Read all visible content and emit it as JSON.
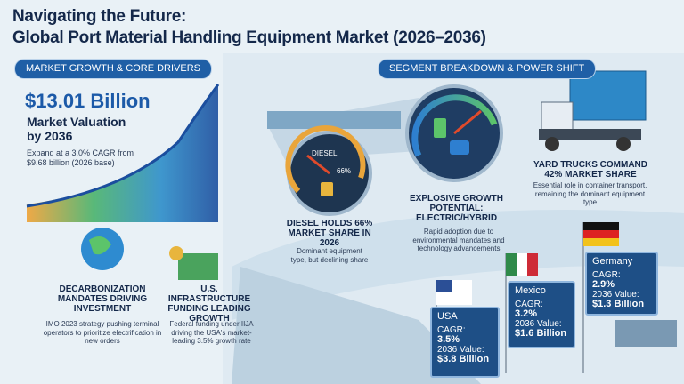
{
  "header": {
    "title_line1": "Navigating the Future:",
    "title_line2": "Global Port Material Handling Equipment Market (2026–2036)"
  },
  "sections": {
    "left": "MARKET GROWTH & CORE DRIVERS",
    "right": "SEGMENT BREAKDOWN & POWER SHIFT"
  },
  "valuation": {
    "amount": "$13.01 Billion",
    "label": "Market Valuation by 2036",
    "note": "Expand at a 3.0% CAGR from $9.68 billion (2026 base)"
  },
  "drivers": [
    {
      "title": "DECARBONIZATION MANDATES DRIVING INVESTMENT",
      "text": "IMO 2023 strategy pushing terminal operators to prioritize electrification in new orders"
    },
    {
      "title": "U.S. INFRASTRUCTURE FUNDING LEADING GROWTH",
      "text": "Federal funding under IIJA driving the USA's market-leading 3.5% growth rate"
    }
  ],
  "diesel": {
    "gauge_label": "DIESEL",
    "gauge_value": "66%",
    "title": "DIESEL HOLDS 66% MARKET SHARE IN 2026",
    "text": "Dominant equipment type, but declining share"
  },
  "electric": {
    "title": "EXPLOSIVE GROWTH POTENTIAL: ELECTRIC/HYBRID",
    "text": "Rapid adoption due to environmental mandates and technology advancements"
  },
  "yard_trucks": {
    "title": "YARD TRUCKS COMMAND 42% MARKET SHARE",
    "text": "Essential role in container transport, remaining the dominant equipment type"
  },
  "countries": [
    {
      "name": "USA",
      "cagr_label": "CAGR:",
      "cagr": "3.5%",
      "value_label": "2036 Value:",
      "value": "$3.8 Billion"
    },
    {
      "name": "Mexico",
      "cagr_label": "CAGR:",
      "cagr": "3.2%",
      "value_label": "2036 Value:",
      "value": "$1.6 Billion"
    },
    {
      "name": "Germany",
      "cagr_label": "CAGR:",
      "cagr": "2.9%",
      "value_label": "2036 Value:",
      "value": "$1.3 Billion"
    }
  ]
}
